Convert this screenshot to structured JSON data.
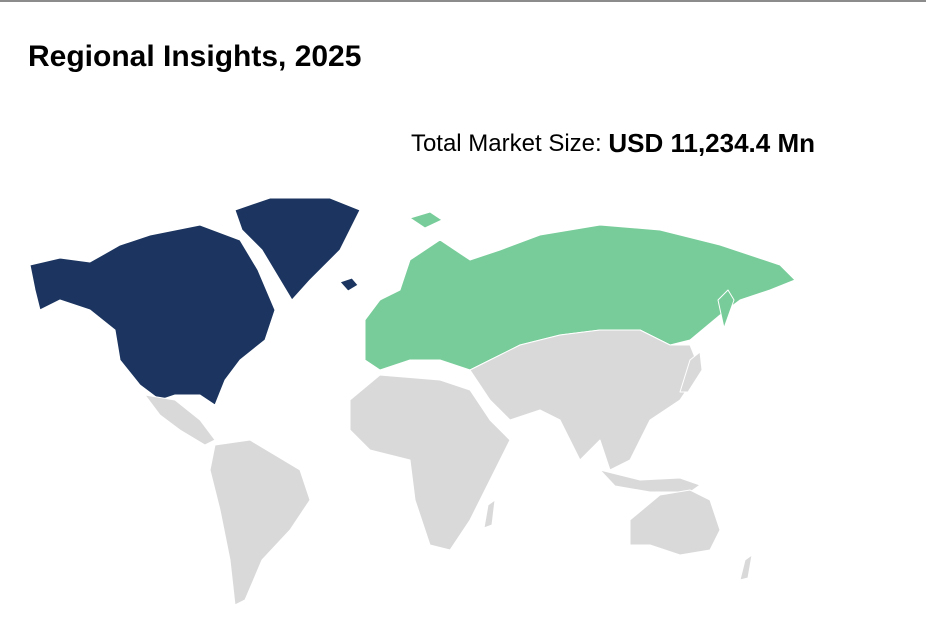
{
  "header": {
    "title": "Regional Insights, 2025"
  },
  "market_size": {
    "label": "Total Market Size:",
    "value": "USD 11,234.4 Mn"
  }
}
